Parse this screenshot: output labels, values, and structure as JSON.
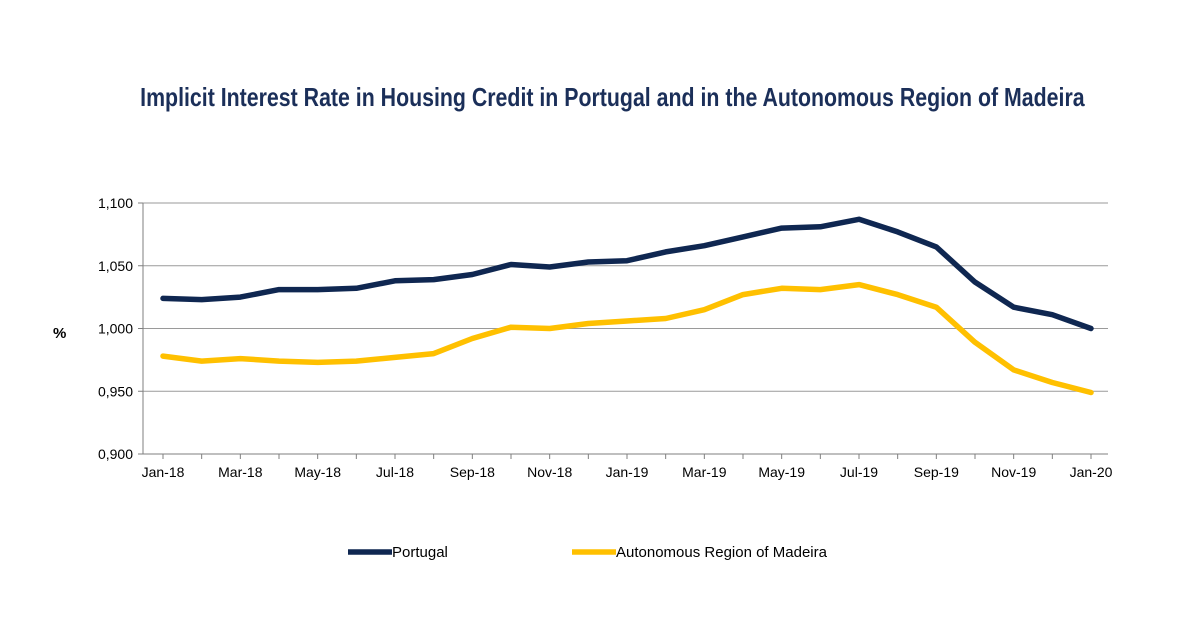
{
  "chart_data": {
    "type": "line",
    "title": "Implicit Interest Rate in Housing Credit in Portugal and in the Autonomous Region of Madeira",
    "xlabel": "",
    "ylabel": "%",
    "ylim": [
      0.9,
      1.1
    ],
    "yticks": [
      "0,900",
      "0,950",
      "1,000",
      "1,050",
      "1,100"
    ],
    "grid": true,
    "legend_position": "bottom",
    "x": [
      "Jan-18",
      "Feb-18",
      "Mar-18",
      "Apr-18",
      "May-18",
      "Jun-18",
      "Jul-18",
      "Aug-18",
      "Sep-18",
      "Oct-18",
      "Nov-18",
      "Dec-18",
      "Jan-19",
      "Feb-19",
      "Mar-19",
      "Apr-19",
      "May-19",
      "Jun-19",
      "Jul-19",
      "Aug-19",
      "Sep-19",
      "Oct-19",
      "Nov-19",
      "Dec-19",
      "Jan-20"
    ],
    "xtick_labels": [
      "Jan-18",
      "Mar-18",
      "May-18",
      "Jul-18",
      "Sep-18",
      "Nov-18",
      "Jan-19",
      "Mar-19",
      "May-19",
      "Jul-19",
      "Sep-19",
      "Nov-19",
      "Jan-20"
    ],
    "series": [
      {
        "name": "Portugal",
        "color": "#0f2751",
        "values": [
          1.024,
          1.023,
          1.025,
          1.031,
          1.031,
          1.032,
          1.038,
          1.039,
          1.043,
          1.051,
          1.049,
          1.053,
          1.054,
          1.061,
          1.066,
          1.073,
          1.08,
          1.081,
          1.087,
          1.077,
          1.065,
          1.037,
          1.017,
          1.011,
          1.0
        ]
      },
      {
        "name": "Autonomous Region of Madeira",
        "color": "#ffc000",
        "values": [
          0.978,
          0.974,
          0.976,
          0.974,
          0.973,
          0.974,
          0.977,
          0.98,
          0.992,
          1.001,
          1.0,
          1.004,
          1.006,
          1.008,
          1.015,
          1.027,
          1.032,
          1.031,
          1.035,
          1.027,
          1.017,
          0.989,
          0.967,
          0.957,
          0.949
        ]
      }
    ]
  }
}
